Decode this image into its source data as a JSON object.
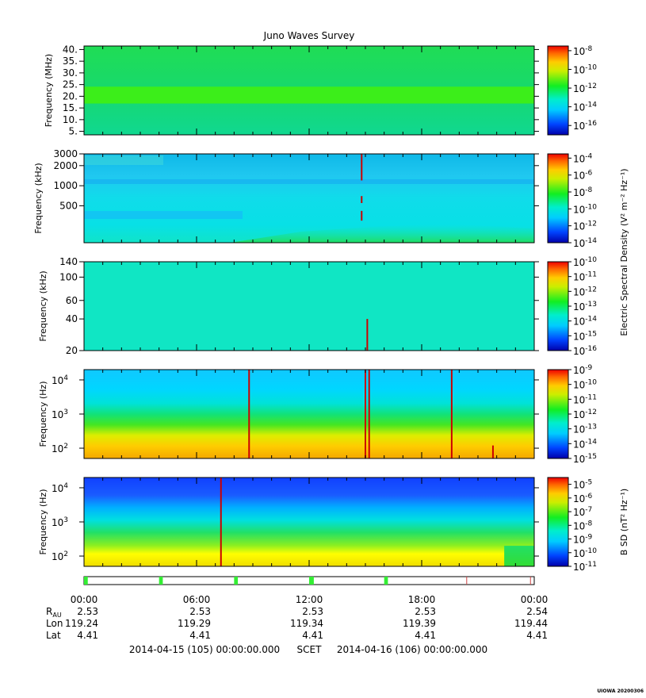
{
  "chart_data": {
    "type": "heatmap",
    "title": "Juno Waves Survey",
    "x_time_ticks": [
      "00:00",
      "06:00",
      "12:00",
      "18:00",
      "00:00"
    ],
    "panels": [
      {
        "name": "high-frequency-receiver",
        "ylabel": "Frequency (MHz)",
        "y_scale": "linear",
        "ylim": [
          3.5,
          41.5
        ],
        "y_ticks": [
          {
            "v": 5,
            "label": "5."
          },
          {
            "v": 10,
            "label": "10."
          },
          {
            "v": 15,
            "label": "15."
          },
          {
            "v": 20,
            "label": "20."
          },
          {
            "v": 25,
            "label": "25."
          },
          {
            "v": 30,
            "label": "30."
          },
          {
            "v": 35,
            "label": "35."
          },
          {
            "v": 40,
            "label": "40."
          }
        ],
        "colorbar_exponents": [
          "-8",
          "-10",
          "-12",
          "-14",
          "-16"
        ],
        "color_range_log": [
          -17,
          -7.5
        ],
        "features": [
          {
            "kind": "band",
            "y": 20.5,
            "width_data": 1.2,
            "level": -11.4
          }
        ]
      },
      {
        "name": "mid-frequency-receiver",
        "ylabel": "Frequency (kHz)",
        "y_scale": "log",
        "ylim": [
          140,
          3000
        ],
        "y_ticks": [
          {
            "v": 3000,
            "label": "3000"
          },
          {
            "v": 2000,
            "label": "2000"
          },
          {
            "v": 1000,
            "label": "1000"
          },
          {
            "v": 500,
            "label": "500"
          }
        ],
        "colorbar_exponents": [
          "-4",
          "-6",
          "-8",
          "-10",
          "-12",
          "-14"
        ],
        "color_range_log": [
          -14,
          -3.5
        ],
        "features": [
          {
            "kind": "spike",
            "x_hour": 14.8,
            "y_from": 1200,
            "y_to": 3000
          },
          {
            "kind": "spike",
            "x_hour": 14.8,
            "y_from": 550,
            "y_to": 700
          },
          {
            "kind": "spike",
            "x_hour": 14.8,
            "y_from": 300,
            "y_to": 420
          }
        ]
      },
      {
        "name": "low-frequency-receiver-high",
        "ylabel": "Frequency (kHz)",
        "y_scale": "log",
        "ylim": [
          20,
          140
        ],
        "y_ticks": [
          {
            "v": 140,
            "label": "140"
          },
          {
            "v": 100,
            "label": "100"
          },
          {
            "v": 60,
            "label": "60"
          },
          {
            "v": 40,
            "label": "40"
          },
          {
            "v": 20,
            "label": "20"
          }
        ],
        "colorbar_exponents": [
          "-10",
          "-11",
          "-12",
          "-13",
          "-14",
          "-15",
          "-16"
        ],
        "color_range_log": [
          -16,
          -10
        ],
        "features": [
          {
            "kind": "spike",
            "x_hour": 15.1,
            "y_from": 20,
            "y_to": 40
          }
        ]
      },
      {
        "name": "low-frequency-receiver-low",
        "ylabel": "Frequency (Hz)",
        "y_scale": "log",
        "ylim": [
          50,
          20000
        ],
        "y_ticks": [
          {
            "v": 10000,
            "label": "10",
            "exp": "4"
          },
          {
            "v": 1000,
            "label": "10",
            "exp": "3"
          },
          {
            "v": 100,
            "label": "10",
            "exp": "2"
          }
        ],
        "colorbar_exponents": [
          "-9",
          "-10",
          "-11",
          "-12",
          "-13",
          "-14",
          "-15"
        ],
        "color_range_log": [
          -15,
          -9
        ],
        "features": [
          {
            "kind": "spike",
            "x_hour": 8.8,
            "y_from": 50,
            "y_to": 20000
          },
          {
            "kind": "spike",
            "x_hour": 15.0,
            "y_from": 50,
            "y_to": 20000
          },
          {
            "kind": "spike",
            "x_hour": 15.2,
            "y_from": 50,
            "y_to": 20000
          },
          {
            "kind": "spike",
            "x_hour": 19.6,
            "y_from": 50,
            "y_to": 20000
          },
          {
            "kind": "spike",
            "x_hour": 21.8,
            "y_from": 50,
            "y_to": 120
          }
        ]
      },
      {
        "name": "magnetic-search-coil",
        "ylabel": "Frequency (Hz)",
        "y_scale": "log",
        "ylim": [
          50,
          20000
        ],
        "y_ticks": [
          {
            "v": 10000,
            "label": "10",
            "exp": "4"
          },
          {
            "v": 1000,
            "label": "10",
            "exp": "3"
          },
          {
            "v": 100,
            "label": "10",
            "exp": "2"
          }
        ],
        "colorbar_exponents": [
          "-5",
          "-6",
          "-7",
          "-8",
          "-9",
          "-10",
          "-11"
        ],
        "color_range_log": [
          -11,
          -4.5
        ],
        "features": [
          {
            "kind": "spike",
            "x_hour": 7.3,
            "y_from": 50,
            "y_to": 20000
          },
          {
            "kind": "cutoff",
            "x_hour": 22.4
          }
        ]
      }
    ],
    "colorbar_labels": {
      "electric": "Electric Spectral Density (V² m⁻² Hz⁻¹)",
      "magnetic": "B SD (nT² Hz⁻¹)"
    },
    "mode_bar": {
      "green_segments_hours": [
        [
          0.0,
          0.2
        ],
        [
          4.0,
          4.2
        ],
        [
          8.0,
          8.2
        ],
        [
          12.0,
          12.25
        ],
        [
          16.0,
          16.2
        ]
      ],
      "red_marks_hours": [
        20.4,
        23.8
      ]
    },
    "ephemeris": {
      "rows": [
        {
          "label": "R",
          "label_sub": "AU",
          "values": [
            "2.53",
            "2.53",
            "2.53",
            "2.53",
            "2.54"
          ]
        },
        {
          "label": "Lon",
          "values": [
            "119.24",
            "119.29",
            "119.34",
            "119.39",
            "119.44"
          ]
        },
        {
          "label": "Lat",
          "values": [
            "4.41",
            "4.41",
            "4.41",
            "4.41",
            "4.41"
          ]
        }
      ],
      "start_label": "2014-04-15 (105) 00:00:00.000",
      "scet_label": "SCET",
      "end_label": "2014-04-16 (106) 00:00:00.000"
    },
    "credit": "UIOWA 20200306"
  },
  "colors": {
    "frame": "#000000",
    "mode_green": "#33ee33",
    "mode_red": "#cc4444",
    "spike_red": "#cc0000"
  }
}
